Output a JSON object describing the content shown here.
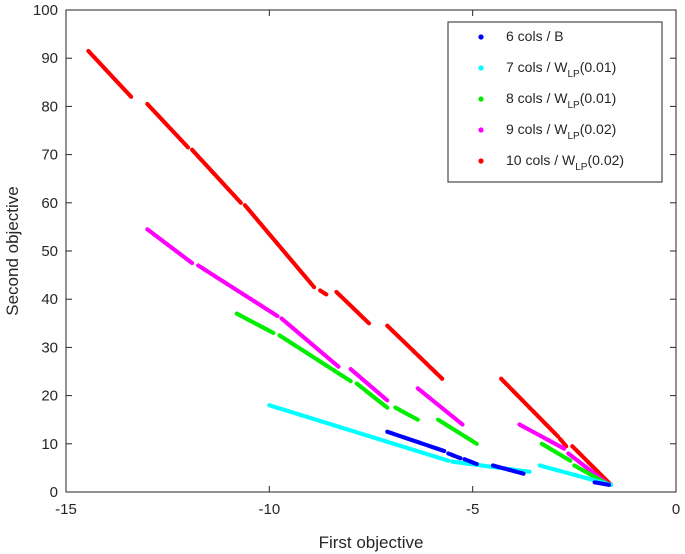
{
  "chart_data": {
    "type": "scatter",
    "title": "",
    "xlabel": "First objective",
    "ylabel": "Second objective",
    "xlim": [
      -15,
      0
    ],
    "ylim": [
      0,
      100
    ],
    "xticks": [
      -15,
      -10,
      -5,
      0
    ],
    "yticks": [
      0,
      10,
      20,
      30,
      40,
      50,
      60,
      70,
      80,
      90,
      100
    ],
    "xtick_labels": [
      "-15",
      "-10",
      "-5",
      "0"
    ],
    "ytick_labels": [
      "0",
      "10",
      "20",
      "30",
      "40",
      "50",
      "60",
      "70",
      "80",
      "90",
      "100"
    ],
    "grid": false,
    "legend_position": "top-right",
    "series": [
      {
        "name": "10 cols / W_LP(0.02)",
        "legend": {
          "main": "10 cols / W",
          "sub": "LP",
          "tail": "(0.02)"
        },
        "color": "#ff0000",
        "segments": [
          {
            "x": [
              -14.45,
              -13.4
            ],
            "y": [
              91.5,
              82.0
            ]
          },
          {
            "x": [
              -13.0,
              -12.0
            ],
            "y": [
              80.5,
              71.5
            ]
          },
          {
            "x": [
              -11.9,
              -10.7
            ],
            "y": [
              71.0,
              60.0
            ]
          },
          {
            "x": [
              -10.6,
              -8.9
            ],
            "y": [
              59.5,
              42.5
            ]
          },
          {
            "x": [
              -8.75,
              -8.6
            ],
            "y": [
              41.8,
              41.0
            ]
          },
          {
            "x": [
              -8.35,
              -7.55
            ],
            "y": [
              41.5,
              35.0
            ]
          },
          {
            "x": [
              -7.1,
              -5.75
            ],
            "y": [
              34.5,
              23.5
            ]
          },
          {
            "x": [
              -4.3,
              -2.9
            ],
            "y": [
              23.5,
              11.5
            ]
          },
          {
            "x": [
              -2.85,
              -2.7
            ],
            "y": [
              11.0,
              9.5
            ]
          },
          {
            "x": [
              -2.55,
              -1.6
            ],
            "y": [
              9.5,
              1.5
            ]
          }
        ]
      },
      {
        "name": "9 cols / W_LP(0.02)",
        "legend": {
          "main": "9 cols / W",
          "sub": "LP",
          "tail": "(0.02)"
        },
        "color": "#ff00ff",
        "segments": [
          {
            "x": [
              -13.0,
              -11.9
            ],
            "y": [
              54.5,
              47.5
            ]
          },
          {
            "x": [
              -11.75,
              -9.8
            ],
            "y": [
              47.0,
              36.5
            ]
          },
          {
            "x": [
              -9.7,
              -8.3
            ],
            "y": [
              36.0,
              26.0
            ]
          },
          {
            "x": [
              -8.0,
              -7.1
            ],
            "y": [
              25.5,
              19.0
            ]
          },
          {
            "x": [
              -6.35,
              -5.25
            ],
            "y": [
              21.5,
              14.0
            ]
          },
          {
            "x": [
              -3.85,
              -2.75
            ],
            "y": [
              14.0,
              9.0
            ]
          },
          {
            "x": [
              -2.65,
              -1.65
            ],
            "y": [
              8.0,
              1.5
            ]
          }
        ]
      },
      {
        "name": "8 cols / W_LP(0.01)",
        "legend": {
          "main": "8 cols / W",
          "sub": "LP",
          "tail": "(0.01)"
        },
        "color": "#00ee00",
        "segments": [
          {
            "x": [
              -10.8,
              -9.9
            ],
            "y": [
              37.0,
              33.0
            ]
          },
          {
            "x": [
              -9.75,
              -8.0
            ],
            "y": [
              32.5,
              23.0
            ]
          },
          {
            "x": [
              -7.85,
              -7.1
            ],
            "y": [
              22.5,
              17.5
            ]
          },
          {
            "x": [
              -6.9,
              -6.35
            ],
            "y": [
              17.5,
              15.0
            ]
          },
          {
            "x": [
              -5.85,
              -4.9
            ],
            "y": [
              15.0,
              10.0
            ]
          },
          {
            "x": [
              -3.3,
              -2.6
            ],
            "y": [
              10.0,
              6.5
            ]
          },
          {
            "x": [
              -2.5,
              -1.65
            ],
            "y": [
              5.5,
              1.5
            ]
          }
        ]
      },
      {
        "name": "7 cols / W_LP(0.01)",
        "legend": {
          "main": "7 cols / W",
          "sub": "LP",
          "tail": "(0.01)"
        },
        "color": "#00ffff",
        "segments": [
          {
            "x": [
              -10.0,
              -5.6
            ],
            "y": [
              18.0,
              6.5
            ]
          },
          {
            "x": [
              -5.5,
              -3.6
            ],
            "y": [
              6.3,
              4.2
            ]
          },
          {
            "x": [
              -3.35,
              -1.6
            ],
            "y": [
              5.5,
              1.5
            ]
          }
        ]
      },
      {
        "name": "6 cols / B",
        "legend": {
          "main": "6 cols / B",
          "sub": "",
          "tail": ""
        },
        "color": "#0000ff",
        "segments": [
          {
            "x": [
              -7.1,
              -5.7
            ],
            "y": [
              12.5,
              8.5
            ]
          },
          {
            "x": [
              -5.6,
              -5.3
            ],
            "y": [
              8.0,
              7.0
            ]
          },
          {
            "x": [
              -5.2,
              -4.9
            ],
            "y": [
              6.8,
              5.8
            ]
          },
          {
            "x": [
              -4.5,
              -3.75
            ],
            "y": [
              5.5,
              3.8
            ]
          },
          {
            "x": [
              -2.0,
              -1.65
            ],
            "y": [
              2.0,
              1.5
            ]
          }
        ]
      }
    ],
    "legend_order": [
      4,
      3,
      2,
      1,
      0
    ]
  }
}
